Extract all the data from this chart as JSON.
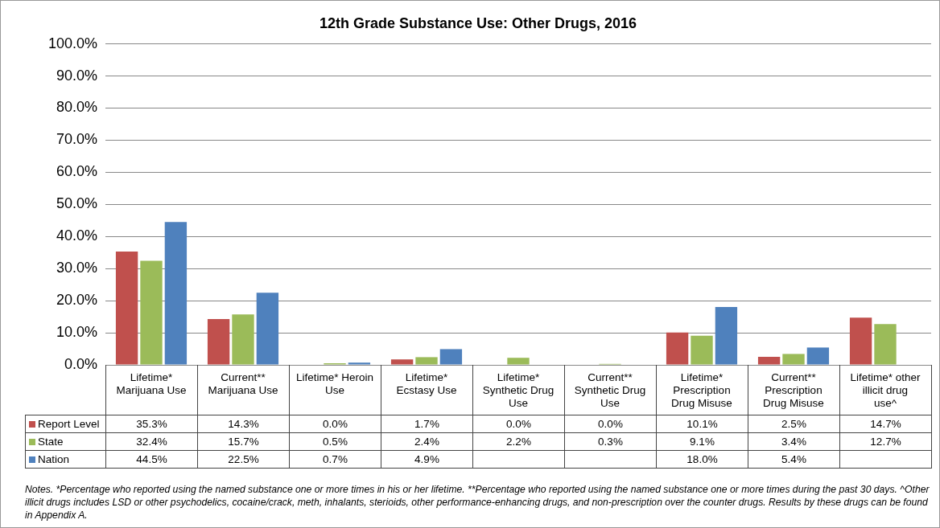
{
  "chart_data": {
    "type": "bar",
    "title": "12th Grade Substance Use: Other Drugs, 2016",
    "categories": [
      "Lifetime* Marijuana Use",
      "Current** Marijuana Use",
      "Lifetime* Heroin Use",
      "Lifetime* Ecstasy Use",
      "Lifetime* Synthetic Drug Use",
      "Current** Synthetic Drug Use",
      "Lifetime* Prescription Drug Misuse",
      "Current** Prescription Drug Misuse",
      "Lifetime* other illicit drug use^"
    ],
    "series": [
      {
        "name": "Report Level",
        "color": "#c0504d",
        "values": [
          35.3,
          14.3,
          0.0,
          1.7,
          0.0,
          0.0,
          10.1,
          2.5,
          14.7
        ]
      },
      {
        "name": "State",
        "color": "#9bbb59",
        "values": [
          32.4,
          15.7,
          0.5,
          2.4,
          2.2,
          0.3,
          9.1,
          3.4,
          12.7
        ]
      },
      {
        "name": "Nation",
        "color": "#4f81bd",
        "values": [
          44.5,
          22.5,
          0.7,
          4.9,
          null,
          null,
          18.0,
          5.4,
          null
        ]
      }
    ],
    "ylim": [
      0,
      100
    ],
    "yticks": [
      {
        "value": 0,
        "label": "0.0%"
      },
      {
        "value": 10,
        "label": "10.0%"
      },
      {
        "value": 20,
        "label": "20.0%"
      },
      {
        "value": 30,
        "label": "30.0%"
      },
      {
        "value": 40,
        "label": "40.0%"
      },
      {
        "value": 50,
        "label": "50.0%"
      },
      {
        "value": 60,
        "label": "60.0%"
      },
      {
        "value": 70,
        "label": "70.0%"
      },
      {
        "value": 80,
        "label": "80.0%"
      },
      {
        "value": 90,
        "label": "90.0%"
      },
      {
        "value": 100,
        "label": "100.0%"
      }
    ],
    "value_labels": [
      [
        "35.3%",
        "14.3%",
        "0.0%",
        "1.7%",
        "0.0%",
        "0.0%",
        "10.1%",
        "2.5%",
        "14.7%"
      ],
      [
        "32.4%",
        "15.7%",
        "0.5%",
        "2.4%",
        "2.2%",
        "0.3%",
        "9.1%",
        "3.4%",
        "12.7%"
      ],
      [
        "44.5%",
        "22.5%",
        "0.7%",
        "4.9%",
        null,
        null,
        "18.0%",
        "5.4%",
        null
      ]
    ],
    "grid": "y",
    "legend": "bottom",
    "annotations": [
      "Notes. *Percentage who reported using the named substance one or more times in his or her lifetime. **Percentage who reported using the named substance one or more times during the past 30 days. ^Other illicit drugs includes LSD or other psychodelics, cocaine/crack, meth, inhalants, sterioids, other performance-enhancing drugs, and non-prescription over the counter drugs. Results by these drugs can be found in Appendix A."
    ]
  }
}
